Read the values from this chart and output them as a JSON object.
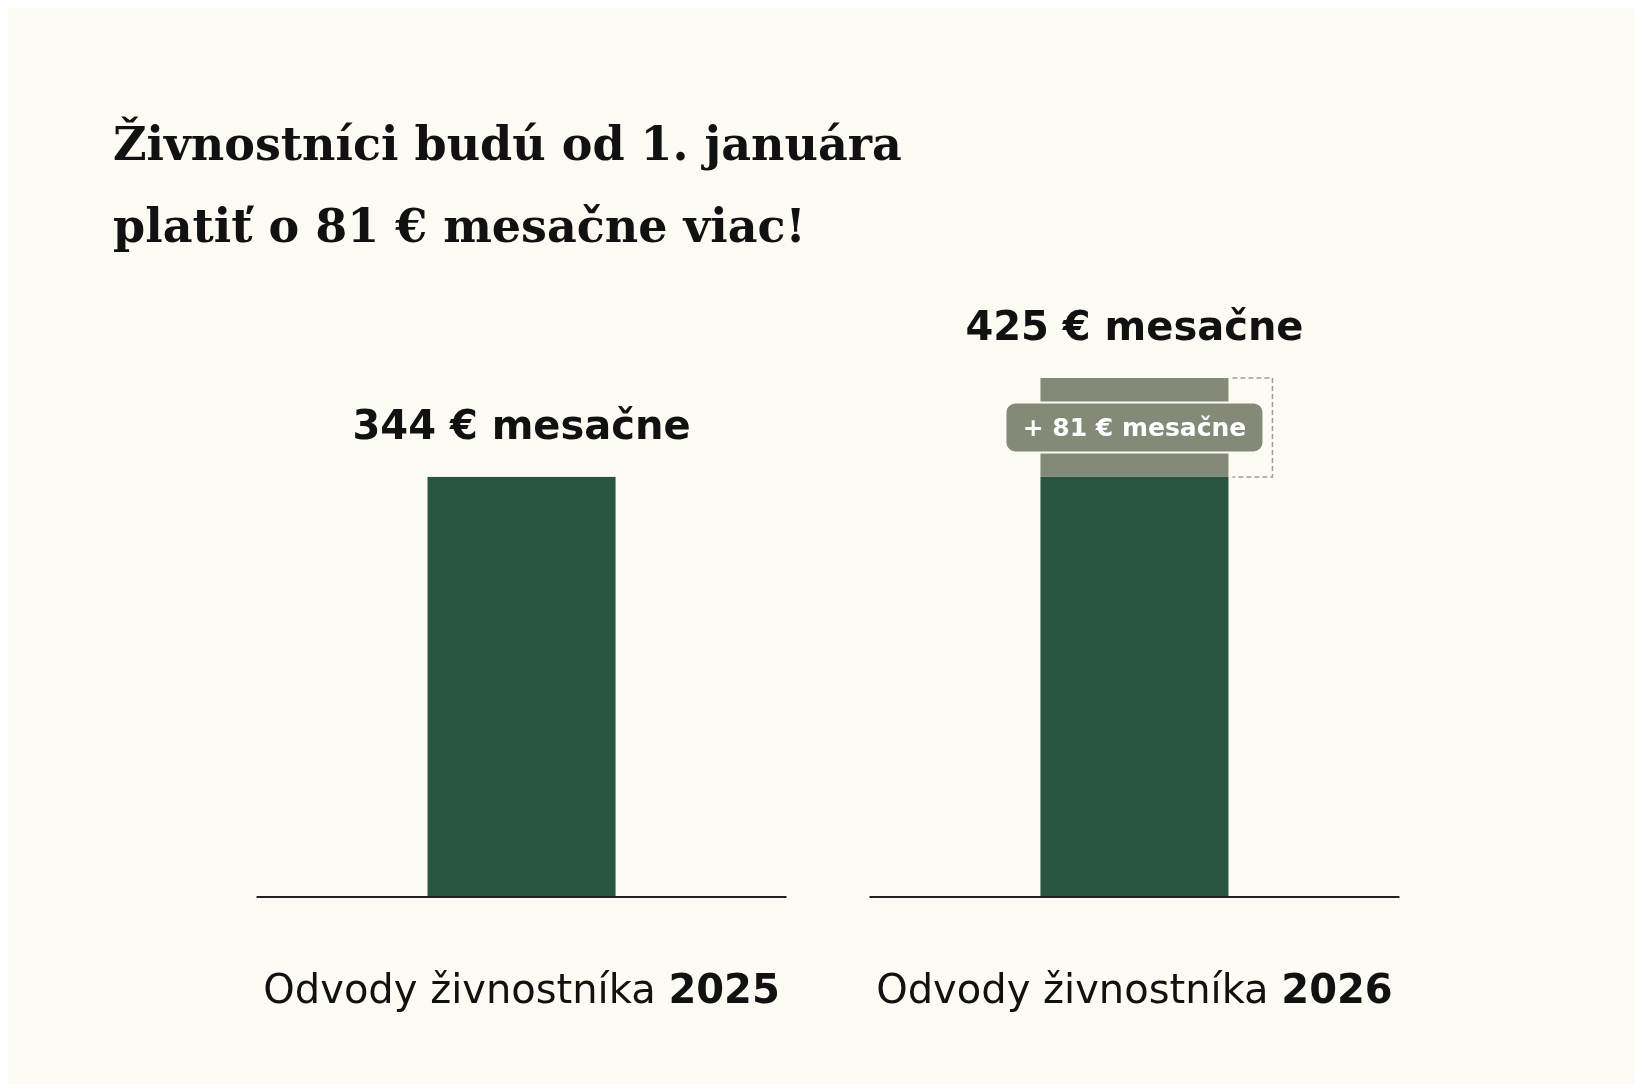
{
  "chart_data": {
    "type": "bar",
    "title": "Živnostníci budú od 1. januára platiť o 81 € mesačne viac!",
    "categories": [
      "Odvody živnostníka 2025",
      "Odvody živnostníka 2026"
    ],
    "stacked": true,
    "series": [
      {
        "color": "#27553f",
        "values": [
          344,
          344
        ],
        "value_labels": [
          "344 € mesačne",
          null
        ]
      },
      {
        "color": "#838b78",
        "values": [
          null,
          81
        ],
        "value_labels": [
          null,
          "+ 81 € mesačne"
        ]
      }
    ],
    "tick_labels": "x",
    "totals": [
      null,
      "425 € mesačne"
    ]
  }
}
